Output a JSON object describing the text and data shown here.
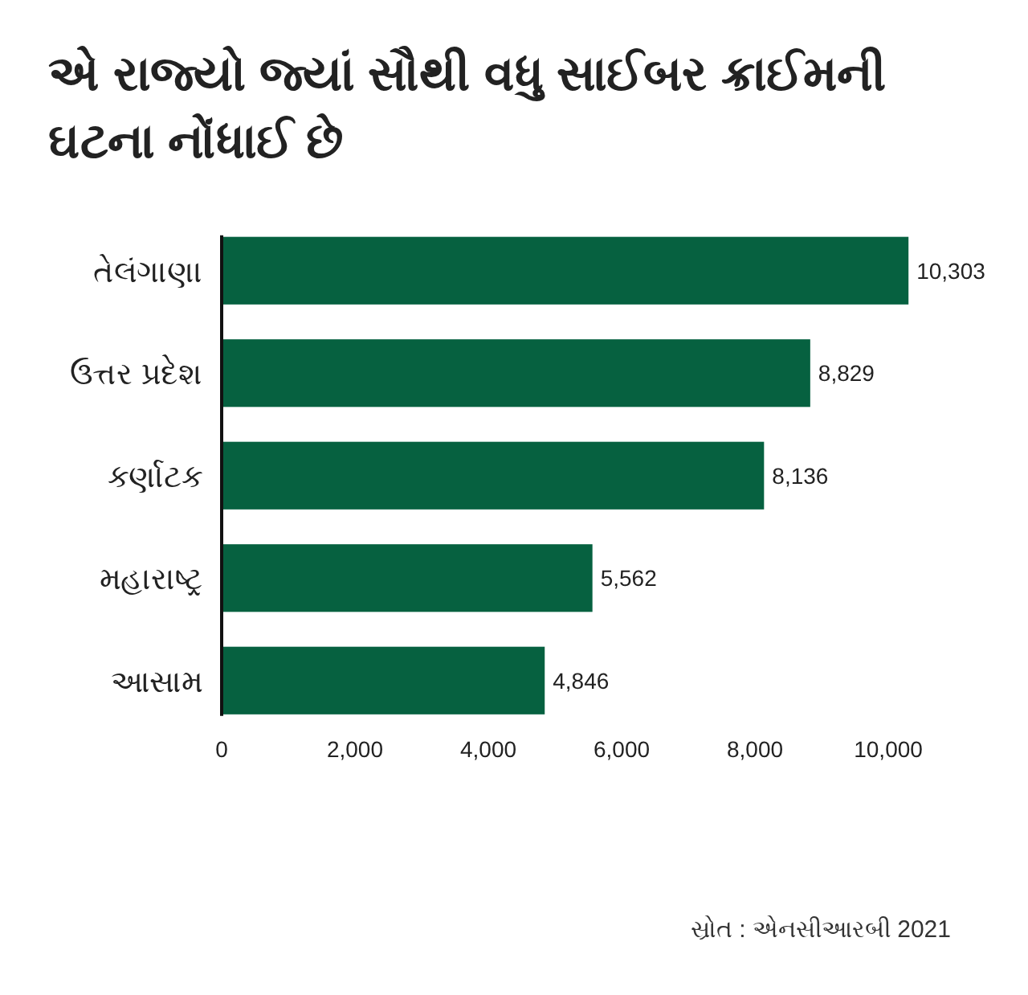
{
  "chart_data": {
    "type": "bar",
    "orientation": "horizontal",
    "title": "એ રાજ્યો જ્યાં સૌથી વધુ સાઈબર ક્રાઈમની ઘટના નોંધાઈ છે",
    "categories": [
      "તેલંગાણા",
      "ઉત્તર પ્રદેશ",
      "કર્ણાટક",
      "મહારાષ્ટ્ર",
      "આસામ"
    ],
    "values": [
      10303,
      8829,
      8136,
      5562,
      4846
    ],
    "value_labels": [
      "10,303",
      "8,829",
      "8,136",
      "5,562",
      "4,846"
    ],
    "color": "#066140",
    "xlim": [
      0,
      10303
    ],
    "xticks": [
      0,
      {
        "value": 2000,
        "label": "2,000"
      },
      {
        "value": 4000,
        "label": "4,000"
      },
      {
        "value": 6000,
        "label": "6,000"
      },
      {
        "value": 8000,
        "label": "8,000"
      },
      {
        "value": 10000,
        "label": "10,000"
      }
    ],
    "annotations": [
      "સ્રોત : એનસીઆરબી 2021"
    ]
  }
}
